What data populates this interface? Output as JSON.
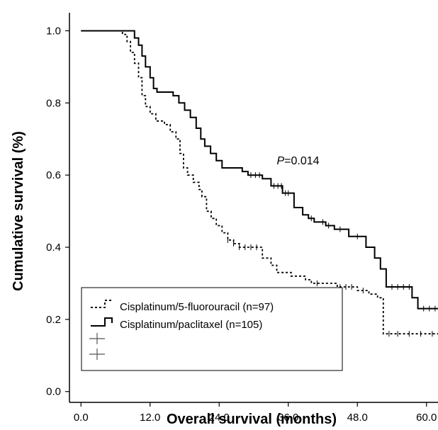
{
  "chart_data": {
    "type": "line",
    "title": "",
    "xlabel": "Overall survival (months)",
    "ylabel": "Cumulative survival (%)",
    "xlim": [
      -2,
      62
    ],
    "ylim": [
      -0.03,
      1.05
    ],
    "x_ticks": [
      "0.0",
      "12.0",
      "24.0",
      "36.0",
      "48.0",
      "60.0"
    ],
    "x_tick_values": [
      0,
      12,
      24,
      36,
      48,
      60
    ],
    "y_ticks": [
      "0.0",
      "0.2",
      "0.4",
      "0.6",
      "0.8",
      "1.0"
    ],
    "y_tick_values": [
      0,
      0.2,
      0.4,
      0.6,
      0.8,
      1.0
    ],
    "grid": false,
    "legend_position": "bottom-left",
    "annotation": {
      "italic": "P",
      "rest": "=0.014",
      "x": 34,
      "y": 0.63
    },
    "legend": {
      "entries": [
        "Cisplatinum/5-fluorouracil (n=97)",
        "Cisplatinum/paclitaxel (n=105)",
        "",
        ""
      ]
    },
    "series": [
      {
        "name": "Cisplatinum/5-fluorouracil (n=97)",
        "style": "dotted",
        "color": "#000000",
        "points": [
          [
            0,
            1.0
          ],
          [
            7.2,
            1.0
          ],
          [
            7.2,
            0.99
          ],
          [
            8.0,
            0.99
          ],
          [
            8.0,
            0.97
          ],
          [
            8.6,
            0.97
          ],
          [
            8.6,
            0.94
          ],
          [
            9.3,
            0.94
          ],
          [
            9.3,
            0.91
          ],
          [
            10.0,
            0.91
          ],
          [
            10.0,
            0.87
          ],
          [
            10.6,
            0.87
          ],
          [
            10.6,
            0.82
          ],
          [
            11.2,
            0.82
          ],
          [
            11.2,
            0.79
          ],
          [
            12.0,
            0.79
          ],
          [
            12.0,
            0.77
          ],
          [
            13.0,
            0.77
          ],
          [
            13.0,
            0.75
          ],
          [
            14.5,
            0.75
          ],
          [
            14.5,
            0.74
          ],
          [
            15.5,
            0.74
          ],
          [
            15.5,
            0.72
          ],
          [
            16.5,
            0.72
          ],
          [
            16.5,
            0.7
          ],
          [
            17.2,
            0.7
          ],
          [
            17.2,
            0.66
          ],
          [
            17.8,
            0.66
          ],
          [
            17.8,
            0.62
          ],
          [
            18.5,
            0.62
          ],
          [
            18.5,
            0.6
          ],
          [
            19.5,
            0.6
          ],
          [
            19.5,
            0.58
          ],
          [
            20.5,
            0.58
          ],
          [
            20.5,
            0.56
          ],
          [
            21.0,
            0.56
          ],
          [
            21.0,
            0.54
          ],
          [
            21.8,
            0.54
          ],
          [
            21.8,
            0.5
          ],
          [
            22.6,
            0.5
          ],
          [
            22.6,
            0.48
          ],
          [
            23.5,
            0.48
          ],
          [
            23.5,
            0.46
          ],
          [
            24.5,
            0.46
          ],
          [
            24.5,
            0.44
          ],
          [
            25.5,
            0.44
          ],
          [
            25.5,
            0.42
          ],
          [
            26.5,
            0.42
          ],
          [
            26.5,
            0.41
          ],
          [
            27.5,
            0.41
          ],
          [
            27.5,
            0.4
          ],
          [
            31.5,
            0.4
          ],
          [
            31.5,
            0.37
          ],
          [
            33.0,
            0.37
          ],
          [
            33.0,
            0.35
          ],
          [
            34.0,
            0.35
          ],
          [
            34.0,
            0.33
          ],
          [
            36.5,
            0.33
          ],
          [
            36.5,
            0.32
          ],
          [
            39.0,
            0.32
          ],
          [
            39.0,
            0.31
          ],
          [
            40.0,
            0.31
          ],
          [
            40.0,
            0.3
          ],
          [
            44.5,
            0.3
          ],
          [
            44.5,
            0.29
          ],
          [
            48.0,
            0.29
          ],
          [
            48.0,
            0.28
          ],
          [
            50.0,
            0.28
          ],
          [
            50.0,
            0.27
          ],
          [
            51.5,
            0.27
          ],
          [
            51.5,
            0.26
          ],
          [
            52.5,
            0.26
          ],
          [
            52.5,
            0.16
          ],
          [
            62.0,
            0.16
          ]
        ],
        "censor": [
          25.5,
          26.5,
          27.5,
          28.5,
          29.5,
          30.5,
          41,
          45,
          46,
          47,
          49,
          53.5,
          55,
          57,
          59,
          61
        ]
      },
      {
        "name": "Cisplatinum/paclitaxel (n=105)",
        "style": "solid",
        "color": "#000000",
        "points": [
          [
            0,
            1.0
          ],
          [
            9.3,
            1.0
          ],
          [
            9.3,
            0.98
          ],
          [
            10.0,
            0.98
          ],
          [
            10.0,
            0.96
          ],
          [
            10.6,
            0.96
          ],
          [
            10.6,
            0.93
          ],
          [
            11.2,
            0.93
          ],
          [
            11.2,
            0.9
          ],
          [
            12.0,
            0.9
          ],
          [
            12.0,
            0.87
          ],
          [
            12.6,
            0.87
          ],
          [
            12.6,
            0.84
          ],
          [
            13.2,
            0.84
          ],
          [
            13.2,
            0.83
          ],
          [
            16.0,
            0.83
          ],
          [
            16.0,
            0.82
          ],
          [
            17.0,
            0.82
          ],
          [
            17.0,
            0.8
          ],
          [
            18.0,
            0.8
          ],
          [
            18.0,
            0.78
          ],
          [
            19.0,
            0.78
          ],
          [
            19.0,
            0.76
          ],
          [
            20.0,
            0.76
          ],
          [
            20.0,
            0.73
          ],
          [
            20.8,
            0.73
          ],
          [
            20.8,
            0.7
          ],
          [
            21.5,
            0.7
          ],
          [
            21.5,
            0.68
          ],
          [
            22.5,
            0.68
          ],
          [
            22.5,
            0.66
          ],
          [
            23.5,
            0.66
          ],
          [
            23.5,
            0.64
          ],
          [
            24.5,
            0.64
          ],
          [
            24.5,
            0.62
          ],
          [
            28.0,
            0.62
          ],
          [
            28.0,
            0.61
          ],
          [
            29.0,
            0.61
          ],
          [
            29.0,
            0.6
          ],
          [
            31.5,
            0.6
          ],
          [
            31.5,
            0.59
          ],
          [
            33.0,
            0.59
          ],
          [
            33.0,
            0.57
          ],
          [
            35.0,
            0.57
          ],
          [
            35.0,
            0.55
          ],
          [
            37.0,
            0.55
          ],
          [
            37.0,
            0.51
          ],
          [
            38.5,
            0.51
          ],
          [
            38.5,
            0.49
          ],
          [
            39.5,
            0.49
          ],
          [
            39.5,
            0.48
          ],
          [
            40.5,
            0.48
          ],
          [
            40.5,
            0.47
          ],
          [
            42.5,
            0.47
          ],
          [
            42.5,
            0.46
          ],
          [
            44.0,
            0.46
          ],
          [
            44.0,
            0.45
          ],
          [
            46.5,
            0.45
          ],
          [
            46.5,
            0.43
          ],
          [
            49.5,
            0.43
          ],
          [
            49.5,
            0.4
          ],
          [
            51.0,
            0.4
          ],
          [
            51.0,
            0.37
          ],
          [
            52.0,
            0.37
          ],
          [
            52.0,
            0.34
          ],
          [
            53.0,
            0.34
          ],
          [
            53.0,
            0.29
          ],
          [
            57.5,
            0.29
          ],
          [
            57.5,
            0.26
          ],
          [
            58.5,
            0.26
          ],
          [
            58.5,
            0.23
          ],
          [
            62.0,
            0.23
          ]
        ],
        "censor": [
          29.5,
          30.3,
          31.0,
          33.5,
          34.2,
          34.8,
          35.5,
          36.0,
          40,
          42,
          43,
          45,
          48,
          54,
          55,
          56,
          57,
          59.5,
          60.5,
          61.5
        ]
      }
    ]
  }
}
